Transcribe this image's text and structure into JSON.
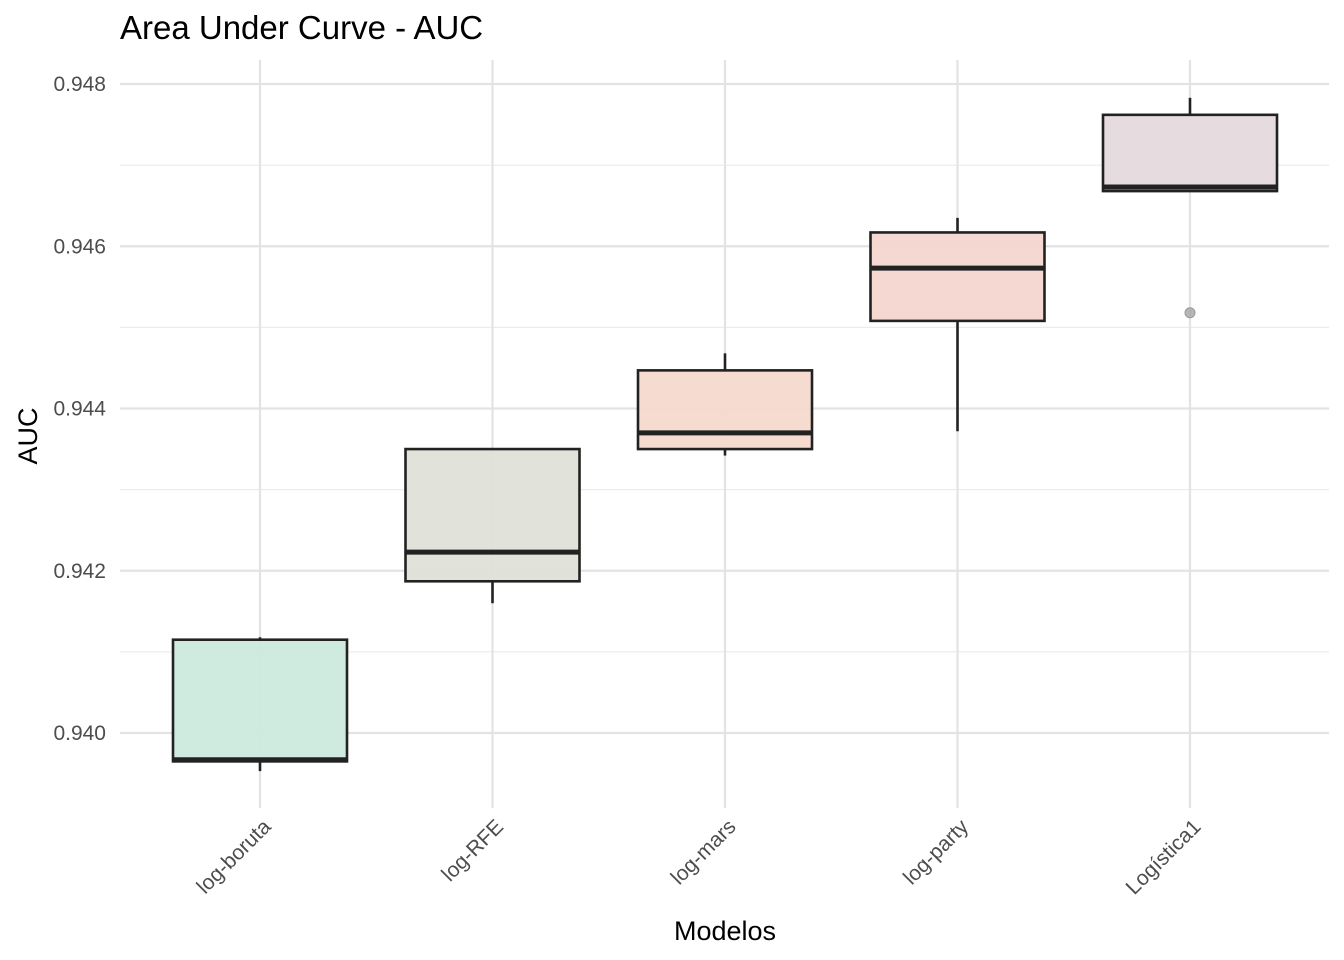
{
  "chart_data": {
    "type": "boxplot",
    "title": "Area Under Curve - AUC",
    "xlabel": "Modelos",
    "ylabel": "AUC",
    "ylim": [
      0.9392,
      0.9484
    ],
    "y_ticks": [
      "0.940",
      "0.942",
      "0.944",
      "0.946",
      "0.948"
    ],
    "y_tick_values": [
      0.94,
      0.942,
      0.944,
      0.946,
      0.948
    ],
    "y_minor_values": [
      0.941,
      0.943,
      0.945,
      0.947
    ],
    "grid": true,
    "legend": "none",
    "categories": [
      "log-boruta",
      "log-RFE",
      "log-mars",
      "log-party",
      "Logística1"
    ],
    "boxes": [
      {
        "category": "log-boruta",
        "whisker_low": 0.93953,
        "q1": 0.93965,
        "median": 0.93967,
        "q3": 0.94115,
        "whisker_high": 0.94118,
        "outliers": [],
        "fill": "#cce9dc"
      },
      {
        "category": "log-RFE",
        "whisker_low": 0.9416,
        "q1": 0.94187,
        "median": 0.94223,
        "q3": 0.9435,
        "whisker_high": 0.9435,
        "outliers": [],
        "fill": "#dfe2d8"
      },
      {
        "category": "log-mars",
        "whisker_low": 0.94342,
        "q1": 0.9435,
        "median": 0.9437,
        "q3": 0.94447,
        "whisker_high": 0.94468,
        "outliers": [],
        "fill": "#f4d9cd"
      },
      {
        "category": "log-party",
        "whisker_low": 0.94372,
        "q1": 0.94508,
        "median": 0.94573,
        "q3": 0.94617,
        "whisker_high": 0.94635,
        "outliers": [],
        "fill": "#f4d6d0"
      },
      {
        "category": "Logística1",
        "whisker_low": 0.94668,
        "q1": 0.94668,
        "median": 0.94673,
        "q3": 0.94762,
        "whisker_high": 0.94783,
        "outliers": [
          0.94518
        ],
        "fill": "#e5dade"
      }
    ]
  }
}
